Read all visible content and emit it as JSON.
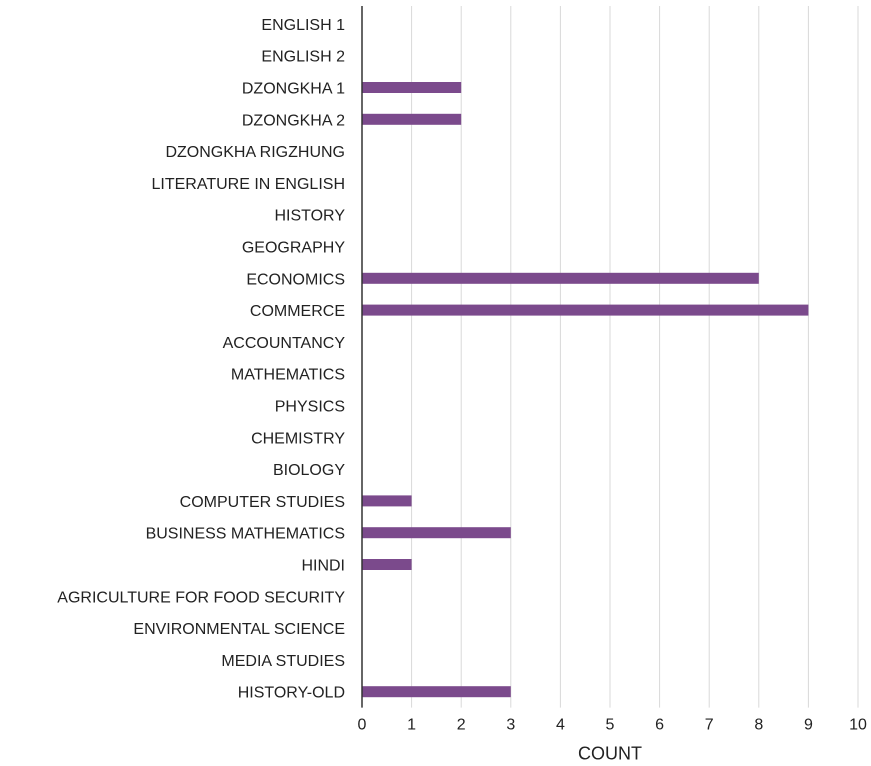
{
  "chart_data": {
    "type": "bar",
    "orientation": "horizontal",
    "categories": [
      "ENGLISH 1",
      "ENGLISH 2",
      "DZONGKHA 1",
      "DZONGKHA 2",
      "DZONGKHA RIGZHUNG",
      "LITERATURE IN ENGLISH",
      "HISTORY",
      "GEOGRAPHY",
      "ECONOMICS",
      "COMMERCE",
      "ACCOUNTANCY",
      "MATHEMATICS",
      "PHYSICS",
      "CHEMISTRY",
      "BIOLOGY",
      "COMPUTER STUDIES",
      "BUSINESS MATHEMATICS",
      "HINDI",
      "AGRICULTURE FOR FOOD SECURITY",
      "ENVIRONMENTAL SCIENCE",
      "MEDIA STUDIES",
      "HISTORY-OLD"
    ],
    "values": [
      0,
      0,
      2,
      2,
      0,
      0,
      0,
      0,
      8,
      9,
      0,
      0,
      0,
      0,
      0,
      1,
      3,
      1,
      0,
      0,
      0,
      3
    ],
    "xlabel": "COUNT",
    "xlim": [
      0,
      10
    ],
    "xticks": [
      "0",
      "1",
      "2",
      "3",
      "4",
      "5",
      "6",
      "7",
      "8",
      "9",
      "10"
    ],
    "grid": "vertical",
    "legend": "none",
    "bar_color": "#7b4a8c",
    "grid_color": "#d9d9d9",
    "axis_color": "#333333"
  }
}
